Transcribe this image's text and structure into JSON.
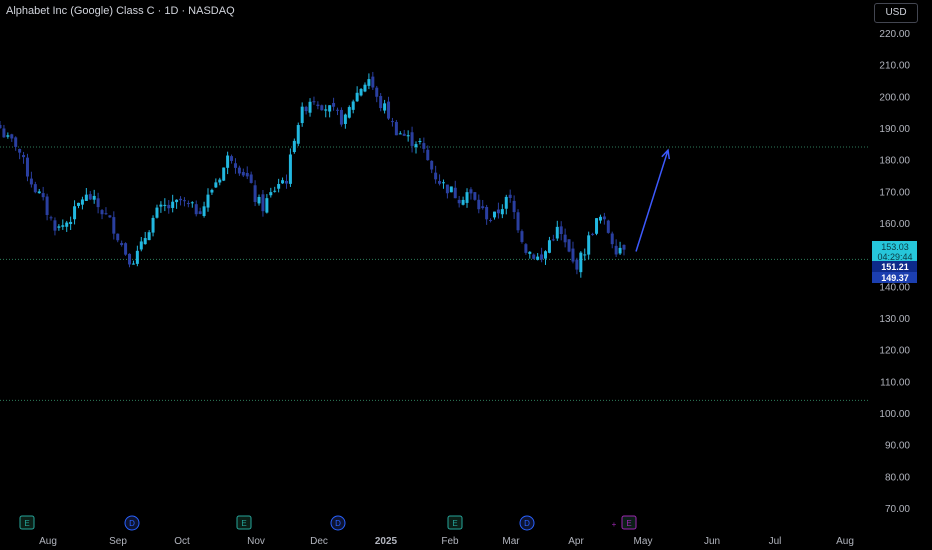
{
  "header": {
    "title": "Alphabet Inc (Google) Class C · 1D · NASDAQ",
    "currency": "USD"
  },
  "price_labels": {
    "last": "153.03",
    "countdown": "04:29:44",
    "close_a": "151.21",
    "close_b": "149.37"
  },
  "events": [
    {
      "letter": "E",
      "type": "earnings",
      "x_label": "Jul",
      "color": "#26a69a"
    },
    {
      "letter": "D",
      "type": "dividend",
      "x_label": "Sep",
      "color": "#2962ff"
    },
    {
      "letter": "E",
      "type": "earnings",
      "x_label": "Oct",
      "color": "#26a69a"
    },
    {
      "letter": "D",
      "type": "dividend",
      "x_label": "Dec",
      "color": "#2962ff"
    },
    {
      "letter": "E",
      "type": "earnings",
      "x_label": "Feb",
      "color": "#26a69a"
    },
    {
      "letter": "D",
      "type": "dividend",
      "x_label": "Mar",
      "color": "#2962ff"
    },
    {
      "letter": "E",
      "type": "earnings",
      "x_label": "Apr",
      "color": "#9c27b0"
    }
  ],
  "colors": {
    "background": "#000000",
    "up": "#22b8e0",
    "down": "#2a3fa0",
    "last_price": "#26c6da",
    "close_label": "#1e3a8a",
    "level_line": "#2e7d5b",
    "arrow": "#3d5afe"
  },
  "chart_data": {
    "type": "candlestick",
    "symbol": "Alphabet Inc (Google) Class C",
    "interval": "1D",
    "exchange": "NASDAQ",
    "currency": "USD",
    "ylim": [
      70,
      225
    ],
    "y_ticks": [
      "220.00",
      "210.00",
      "200.00",
      "190.00",
      "180.00",
      "170.00",
      "160.00",
      "150.00",
      "140.00",
      "130.00",
      "120.00",
      "110.00",
      "100.00",
      "90.00",
      "80.00",
      "70.00"
    ],
    "x_ticks": [
      "Aug",
      "Sep",
      "Oct",
      "Nov",
      "Dec",
      "2025",
      "Feb",
      "Mar",
      "Apr",
      "May",
      "Jun",
      "Jul",
      "Aug"
    ],
    "levels": [
      184,
      148.5,
      104
    ],
    "last_price": 153.03,
    "arrow": {
      "from": {
        "date": "late Apr",
        "price": 151
      },
      "to": {
        "date": "mid May",
        "price": 183
      }
    },
    "series": [
      {
        "name": "",
        "close_path": [
          190,
          186,
          185,
          178,
          172,
          168,
          162,
          158,
          160,
          163,
          168,
          168,
          165,
          162,
          158,
          152,
          148,
          151,
          158,
          163,
          165,
          165,
          167,
          165,
          164,
          166,
          172,
          176,
          182,
          178,
          175,
          168,
          165,
          169,
          173,
          174,
          190,
          196,
          200,
          198,
          196,
          194,
          192,
          199,
          203,
          206,
          198,
          196,
          190,
          188,
          186,
          186,
          180,
          175,
          172,
          170,
          168,
          170,
          166,
          163,
          161,
          165,
          168,
          160,
          152,
          150,
          148,
          155,
          158,
          152,
          146,
          150,
          157,
          162,
          158,
          152,
          153
        ]
      }
    ]
  }
}
